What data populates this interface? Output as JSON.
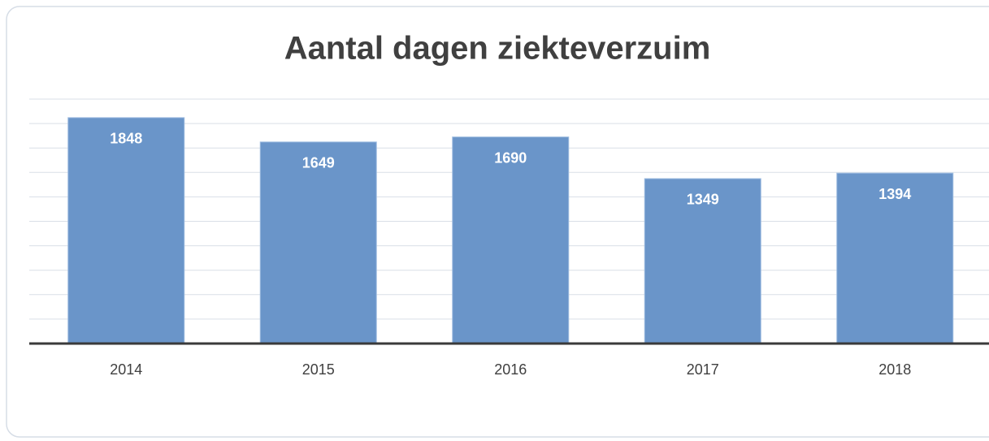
{
  "chart_data": {
    "type": "bar",
    "title": "Aantal dagen ziekteverzuim",
    "categories": [
      "2014",
      "2015",
      "2016",
      "2017",
      "2018"
    ],
    "values": [
      1848,
      1649,
      1690,
      1349,
      1394
    ],
    "color": "#6a95c9",
    "ylim": [
      0,
      2000
    ],
    "yticks": [
      0,
      200,
      400,
      600,
      800,
      1000,
      1200,
      1400,
      1600,
      1800,
      2000
    ],
    "grid": true
  }
}
